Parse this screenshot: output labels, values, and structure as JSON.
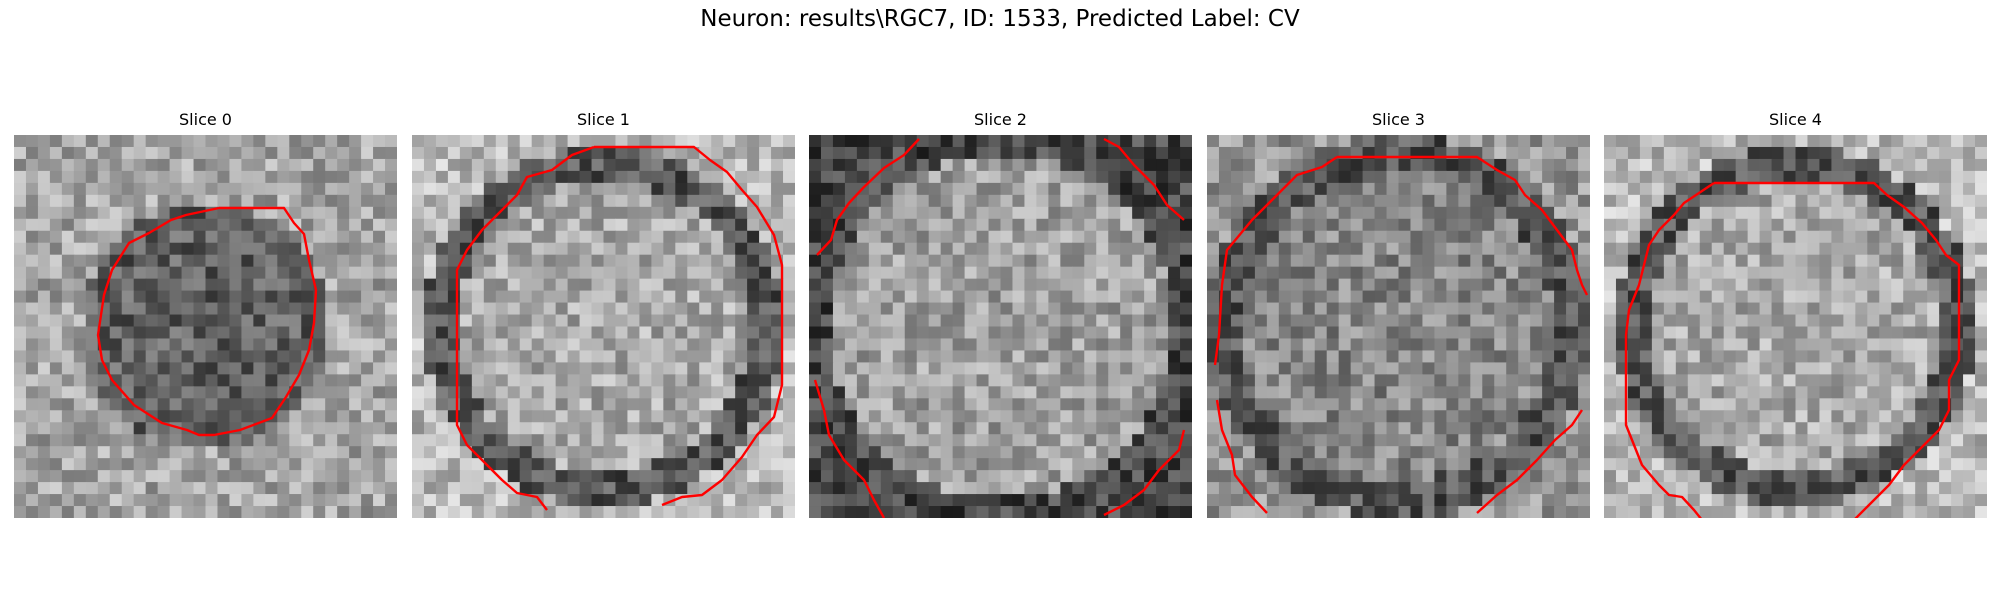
{
  "figure": {
    "title": "Neuron: results\\RGC7, ID: 1533, Predicted Label: CV"
  },
  "colors": {
    "contour": "#ff0000",
    "background": "#ffffff"
  },
  "slices": [
    {
      "title": "Slice 0",
      "pattern": "dark-center",
      "seed": 11
    },
    {
      "title": "Slice 1",
      "pattern": "light-center-dark-ring",
      "seed": 23
    },
    {
      "title": "Slice 2",
      "pattern": "light-center-dark-corners",
      "seed": 37
    },
    {
      "title": "Slice 3",
      "pattern": "mid-gray-dark-ring",
      "seed": 41
    },
    {
      "title": "Slice 4",
      "pattern": "light-center-dark-ring",
      "seed": 53
    }
  ]
}
